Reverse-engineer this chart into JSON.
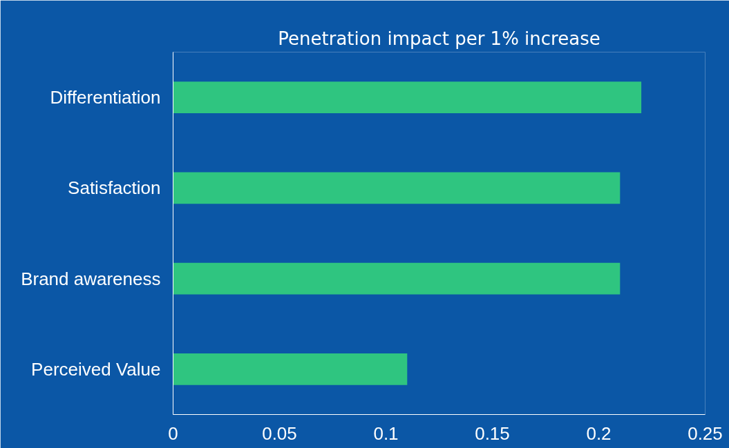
{
  "chart_data": {
    "type": "bar",
    "orientation": "horizontal",
    "title": "Penetration impact per 1% increase",
    "categories": [
      "Differentiation",
      "Satisfaction",
      "Brand awareness",
      "Perceived Value"
    ],
    "values": [
      0.22,
      0.21,
      0.21,
      0.11
    ],
    "color": "#2fc580",
    "xlim": [
      0,
      0.25
    ],
    "xticks": [
      0,
      0.05,
      0.1,
      0.15,
      0.2,
      0.25
    ],
    "grid": false
  }
}
